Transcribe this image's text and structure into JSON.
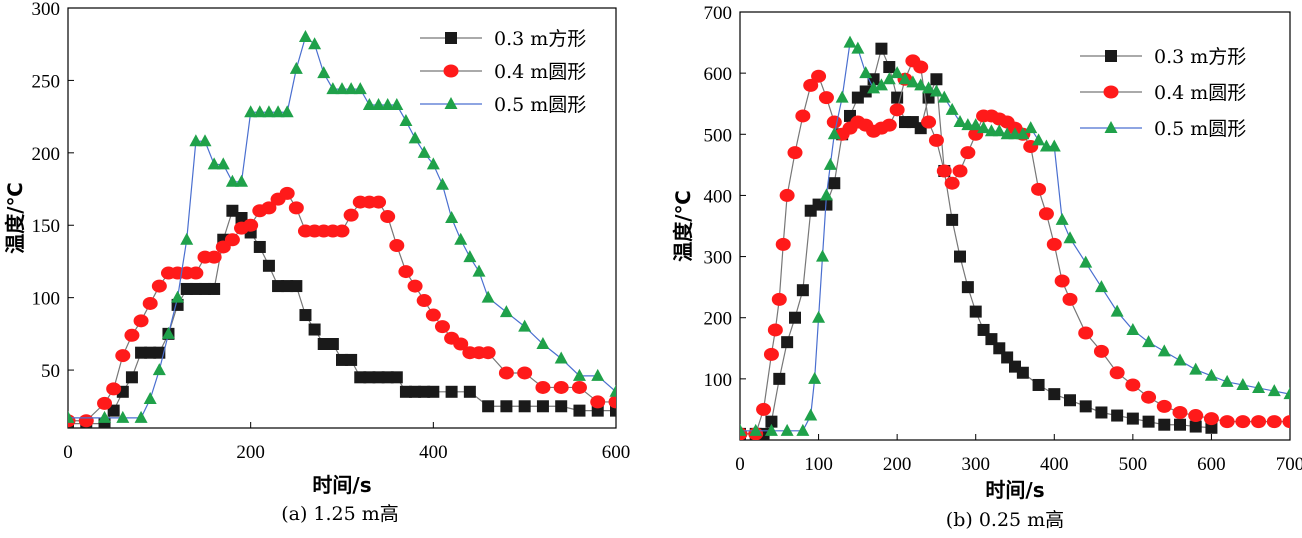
{
  "chart_data": [
    {
      "type": "line",
      "caption": "(a) 1.25 m高",
      "xlabel": "时间/s",
      "ylabel": "温度/℃",
      "xlim": [
        0,
        600
      ],
      "ylim": [
        10,
        300
      ],
      "xticks": [
        0,
        200,
        400,
        600
      ],
      "yticks": [
        50,
        100,
        150,
        200,
        250,
        300
      ],
      "legend_position": "top-right",
      "series": [
        {
          "name": "0.3 m方形",
          "marker": "square",
          "color": "#1a1a1a",
          "x": [
            0,
            20,
            40,
            50,
            60,
            70,
            80,
            90,
            100,
            110,
            120,
            130,
            140,
            150,
            160,
            170,
            180,
            190,
            200,
            210,
            220,
            230,
            240,
            250,
            260,
            270,
            280,
            290,
            300,
            310,
            320,
            330,
            340,
            350,
            360,
            370,
            380,
            390,
            400,
            420,
            440,
            460,
            480,
            500,
            520,
            540,
            560,
            580,
            600
          ],
          "y": [
            13,
            13,
            13,
            22,
            35,
            45,
            62,
            62,
            62,
            75,
            95,
            106,
            106,
            106,
            106,
            140,
            160,
            155,
            145,
            135,
            122,
            108,
            108,
            108,
            88,
            78,
            68,
            68,
            57,
            57,
            45,
            45,
            45,
            45,
            45,
            35,
            35,
            35,
            35,
            35,
            35,
            25,
            25,
            25,
            25,
            25,
            22,
            22,
            22
          ]
        },
        {
          "name": "0.4 m圆形",
          "marker": "circle",
          "color": "#ff1a1a",
          "x": [
            0,
            20,
            40,
            50,
            60,
            70,
            80,
            90,
            100,
            110,
            120,
            130,
            140,
            150,
            160,
            170,
            180,
            190,
            200,
            210,
            220,
            230,
            240,
            250,
            260,
            270,
            280,
            290,
            300,
            310,
            320,
            330,
            340,
            350,
            360,
            370,
            380,
            390,
            400,
            410,
            420,
            430,
            440,
            450,
            460,
            480,
            500,
            520,
            540,
            560,
            580,
            600
          ],
          "y": [
            15,
            15,
            27,
            37,
            60,
            74,
            84,
            96,
            108,
            117,
            117,
            117,
            117,
            128,
            128,
            135,
            140,
            148,
            150,
            160,
            162,
            168,
            172,
            162,
            146,
            146,
            146,
            146,
            146,
            157,
            166,
            166,
            166,
            156,
            136,
            118,
            108,
            98,
            88,
            80,
            72,
            68,
            62,
            62,
            62,
            48,
            48,
            38,
            38,
            38,
            28,
            28
          ]
        },
        {
          "name": "0.5 m圆形",
          "marker": "triangle",
          "color": "#1fa14a",
          "x": [
            0,
            40,
            60,
            80,
            90,
            100,
            110,
            120,
            130,
            140,
            150,
            160,
            170,
            180,
            190,
            200,
            210,
            220,
            230,
            240,
            250,
            260,
            270,
            280,
            290,
            300,
            310,
            320,
            330,
            340,
            350,
            360,
            370,
            380,
            390,
            400,
            410,
            420,
            430,
            440,
            450,
            460,
            480,
            500,
            520,
            540,
            560,
            580,
            600
          ],
          "y": [
            17,
            17,
            17,
            17,
            30,
            50,
            75,
            100,
            140,
            208,
            208,
            192,
            192,
            180,
            180,
            228,
            228,
            228,
            228,
            228,
            258,
            280,
            275,
            255,
            244,
            244,
            244,
            244,
            233,
            233,
            233,
            233,
            222,
            210,
            200,
            192,
            178,
            155,
            140,
            128,
            118,
            100,
            90,
            80,
            68,
            58,
            46,
            46,
            35
          ]
        }
      ]
    },
    {
      "type": "line",
      "caption": "(b) 0.25 m高",
      "xlabel": "时间/s",
      "ylabel": "温度/℃",
      "xlim": [
        0,
        700
      ],
      "ylim": [
        0,
        700
      ],
      "xticks": [
        0,
        100,
        200,
        300,
        400,
        500,
        600,
        700
      ],
      "yticks": [
        100,
        200,
        300,
        400,
        500,
        600,
        700
      ],
      "legend_position": "top-right",
      "series": [
        {
          "name": "0.3 m方形",
          "marker": "square",
          "color": "#1a1a1a",
          "x": [
            0,
            20,
            30,
            40,
            50,
            60,
            70,
            80,
            90,
            100,
            110,
            120,
            130,
            140,
            150,
            160,
            170,
            180,
            190,
            200,
            210,
            220,
            230,
            240,
            250,
            260,
            270,
            280,
            290,
            300,
            310,
            320,
            330,
            340,
            350,
            360,
            380,
            400,
            420,
            440,
            460,
            480,
            500,
            520,
            540,
            560,
            580,
            600
          ],
          "y": [
            10,
            10,
            10,
            30,
            100,
            160,
            200,
            245,
            375,
            385,
            385,
            420,
            500,
            530,
            560,
            570,
            590,
            640,
            610,
            560,
            520,
            520,
            510,
            560,
            590,
            440,
            360,
            300,
            250,
            210,
            180,
            165,
            150,
            135,
            120,
            110,
            90,
            75,
            65,
            55,
            45,
            40,
            35,
            30,
            25,
            25,
            22,
            20
          ]
        },
        {
          "name": "0.4 m圆形",
          "marker": "circle",
          "color": "#ff1a1a",
          "x": [
            0,
            20,
            30,
            40,
            45,
            50,
            55,
            60,
            70,
            80,
            90,
            100,
            110,
            120,
            130,
            140,
            150,
            160,
            170,
            180,
            190,
            200,
            210,
            220,
            230,
            240,
            250,
            260,
            270,
            280,
            290,
            300,
            310,
            320,
            330,
            340,
            350,
            360,
            370,
            380,
            390,
            400,
            410,
            420,
            440,
            460,
            480,
            500,
            520,
            540,
            560,
            580,
            600,
            620,
            640,
            660,
            680,
            700
          ],
          "y": [
            10,
            10,
            50,
            140,
            180,
            230,
            320,
            400,
            470,
            530,
            580,
            595,
            560,
            520,
            500,
            510,
            520,
            515,
            505,
            510,
            515,
            540,
            590,
            620,
            610,
            520,
            490,
            440,
            420,
            440,
            470,
            500,
            530,
            530,
            525,
            520,
            510,
            500,
            480,
            410,
            370,
            320,
            260,
            230,
            175,
            145,
            110,
            90,
            70,
            55,
            45,
            40,
            35,
            30,
            30,
            30,
            30,
            30
          ]
        },
        {
          "name": "0.5 m圆形",
          "marker": "triangle",
          "color": "#1fa14a",
          "x": [
            0,
            20,
            40,
            60,
            80,
            90,
            95,
            100,
            105,
            110,
            115,
            120,
            130,
            140,
            150,
            160,
            170,
            180,
            190,
            200,
            210,
            220,
            230,
            240,
            250,
            260,
            270,
            280,
            290,
            300,
            310,
            320,
            330,
            340,
            350,
            360,
            370,
            380,
            390,
            400,
            410,
            420,
            440,
            460,
            480,
            500,
            520,
            540,
            560,
            580,
            600,
            620,
            640,
            660,
            680,
            700
          ],
          "y": [
            15,
            15,
            15,
            15,
            15,
            40,
            100,
            200,
            300,
            400,
            450,
            500,
            560,
            650,
            640,
            600,
            575,
            580,
            590,
            600,
            590,
            585,
            580,
            575,
            570,
            560,
            540,
            520,
            515,
            515,
            510,
            505,
            505,
            500,
            500,
            500,
            510,
            490,
            480,
            480,
            360,
            330,
            290,
            250,
            210,
            180,
            160,
            145,
            130,
            115,
            105,
            95,
            90,
            85,
            80,
            75
          ]
        }
      ]
    }
  ]
}
